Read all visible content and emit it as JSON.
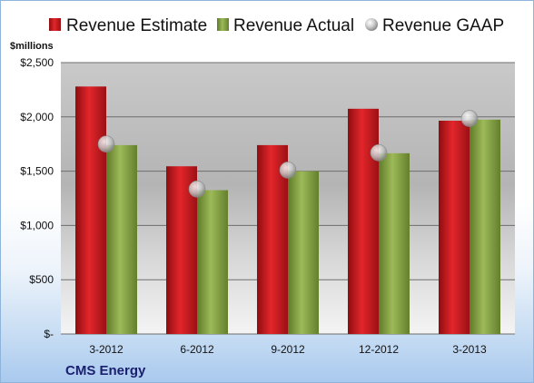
{
  "chart_data": {
    "type": "bar",
    "unit_label": "$millions",
    "categories": [
      "3-2012",
      "6-2012",
      "9-2012",
      "12-2012",
      "3-2013"
    ],
    "series": [
      {
        "name": "Revenue Estimate",
        "kind": "bar",
        "color": "#c0161c",
        "values": [
          2280,
          1545,
          1740,
          2075,
          1965
        ]
      },
      {
        "name": "Revenue Actual",
        "kind": "bar",
        "color": "#7f9e3c",
        "values": [
          1740,
          1325,
          1500,
          1665,
          1975
        ]
      },
      {
        "name": "Revenue GAAP",
        "kind": "marker",
        "color": "#c8c8c8",
        "values": [
          1750,
          1335,
          1510,
          1670,
          1985
        ]
      }
    ],
    "y_ticks": [
      {
        "value": 0,
        "label": "$-"
      },
      {
        "value": 500,
        "label": "$500"
      },
      {
        "value": 1000,
        "label": "$1,000"
      },
      {
        "value": 1500,
        "label": "$1,500"
      },
      {
        "value": 2000,
        "label": "$2,000"
      },
      {
        "value": 2500,
        "label": "$2,500"
      }
    ],
    "ylim": [
      0,
      2500
    ],
    "grid": true,
    "legend_position": "top",
    "footer": "CMS Energy"
  }
}
